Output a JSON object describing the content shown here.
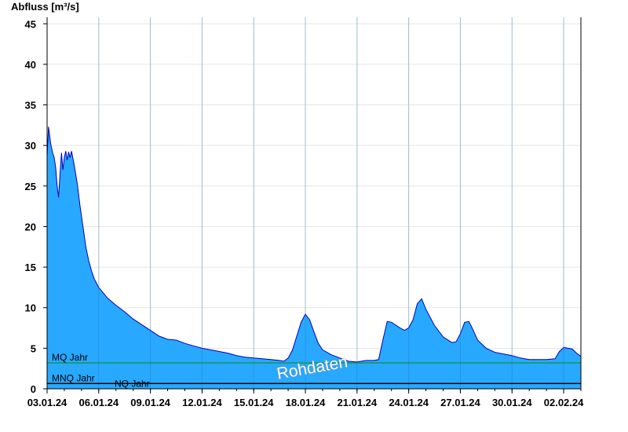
{
  "chart_data": {
    "type": "area",
    "ylabel": "Abfluss [m³/s]",
    "xlabel": "",
    "title": "",
    "ylim": [
      0,
      45.8
    ],
    "yticks": [
      0,
      5,
      10,
      15,
      20,
      25,
      30,
      35,
      40,
      45
    ],
    "x_unit": "day",
    "xlim": [
      "2024-01-03",
      "2024-02-03"
    ],
    "xticks": [
      "03.01.24",
      "06.01.24",
      "09.01.24",
      "12.01.24",
      "15.01.24",
      "18.01.24",
      "21.01.24",
      "24.01.24",
      "27.01.24",
      "30.01.24",
      "02.02.24"
    ],
    "grid": true,
    "series": [
      {
        "name": "",
        "color": "#29a8ff",
        "line_color": "#0000c0",
        "points": [
          [
            "2024-01-03 00:00",
            28.6
          ],
          [
            "2024-01-03 02:00",
            32.3
          ],
          [
            "2024-01-03 05:00",
            30.2
          ],
          [
            "2024-01-03 08:00",
            29.0
          ],
          [
            "2024-01-03 10:00",
            28.5
          ],
          [
            "2024-01-03 12:00",
            27.2
          ],
          [
            "2024-01-03 14:00",
            25.0
          ],
          [
            "2024-01-03 16:00",
            23.6
          ],
          [
            "2024-01-03 18:00",
            26.5
          ],
          [
            "2024-01-03 20:00",
            29.1
          ],
          [
            "2024-01-03 22:00",
            27.0
          ],
          [
            "2024-01-04 00:00",
            28.5
          ],
          [
            "2024-01-04 02:00",
            29.3
          ],
          [
            "2024-01-04 04:00",
            28.2
          ],
          [
            "2024-01-04 06:00",
            29.2
          ],
          [
            "2024-01-04 08:00",
            28.5
          ],
          [
            "2024-01-04 10:00",
            29.3
          ],
          [
            "2024-01-04 14:00",
            27.5
          ],
          [
            "2024-01-04 18:00",
            25.3
          ],
          [
            "2024-01-04 22:00",
            22.5
          ],
          [
            "2024-01-05 02:00",
            20.0
          ],
          [
            "2024-01-05 06:00",
            17.5
          ],
          [
            "2024-01-05 10:00",
            15.8
          ],
          [
            "2024-01-05 14:00",
            14.5
          ],
          [
            "2024-01-05 18:00",
            13.5
          ],
          [
            "2024-01-06 00:00",
            12.5
          ],
          [
            "2024-01-06 12:00",
            11.2
          ],
          [
            "2024-01-07 00:00",
            10.3
          ],
          [
            "2024-01-07 12:00",
            9.5
          ],
          [
            "2024-01-08 00:00",
            8.6
          ],
          [
            "2024-01-08 12:00",
            7.9
          ],
          [
            "2024-01-09 00:00",
            7.2
          ],
          [
            "2024-01-09 12:00",
            6.5
          ],
          [
            "2024-01-10 00:00",
            6.1
          ],
          [
            "2024-01-10 12:00",
            6.0
          ],
          [
            "2024-01-11 00:00",
            5.6
          ],
          [
            "2024-01-11 12:00",
            5.3
          ],
          [
            "2024-01-12 00:00",
            5.0
          ],
          [
            "2024-01-12 12:00",
            4.8
          ],
          [
            "2024-01-13 00:00",
            4.6
          ],
          [
            "2024-01-13 12:00",
            4.4
          ],
          [
            "2024-01-14 00:00",
            4.1
          ],
          [
            "2024-01-14 12:00",
            3.9
          ],
          [
            "2024-01-15 00:00",
            3.8
          ],
          [
            "2024-01-15 12:00",
            3.7
          ],
          [
            "2024-01-16 00:00",
            3.6
          ],
          [
            "2024-01-16 12:00",
            3.5
          ],
          [
            "2024-01-16 18:00",
            3.4
          ],
          [
            "2024-01-17 00:00",
            3.8
          ],
          [
            "2024-01-17 06:00",
            4.8
          ],
          [
            "2024-01-17 12:00",
            6.5
          ],
          [
            "2024-01-17 18:00",
            8.2
          ],
          [
            "2024-01-18 00:00",
            9.2
          ],
          [
            "2024-01-18 06:00",
            8.5
          ],
          [
            "2024-01-18 12:00",
            7.0
          ],
          [
            "2024-01-18 18:00",
            5.6
          ],
          [
            "2024-01-19 00:00",
            4.8
          ],
          [
            "2024-01-19 12:00",
            4.2
          ],
          [
            "2024-01-20 00:00",
            3.8
          ],
          [
            "2024-01-20 12:00",
            3.4
          ],
          [
            "2024-01-21 00:00",
            3.3
          ],
          [
            "2024-01-21 12:00",
            3.5
          ],
          [
            "2024-01-22 00:00",
            3.5
          ],
          [
            "2024-01-22 06:00",
            3.6
          ],
          [
            "2024-01-22 12:00",
            6.0
          ],
          [
            "2024-01-22 18:00",
            8.3
          ],
          [
            "2024-01-23 00:00",
            8.2
          ],
          [
            "2024-01-23 12:00",
            7.5
          ],
          [
            "2024-01-23 18:00",
            7.2
          ],
          [
            "2024-01-24 00:00",
            7.5
          ],
          [
            "2024-01-24 06:00",
            8.5
          ],
          [
            "2024-01-24 12:00",
            10.5
          ],
          [
            "2024-01-24 18:00",
            11.1
          ],
          [
            "2024-01-25 00:00",
            9.8
          ],
          [
            "2024-01-25 12:00",
            7.8
          ],
          [
            "2024-01-26 00:00",
            6.4
          ],
          [
            "2024-01-26 12:00",
            5.7
          ],
          [
            "2024-01-26 18:00",
            5.8
          ],
          [
            "2024-01-27 00:00",
            6.8
          ],
          [
            "2024-01-27 06:00",
            8.2
          ],
          [
            "2024-01-27 12:00",
            8.3
          ],
          [
            "2024-01-27 18:00",
            7.2
          ],
          [
            "2024-01-28 00:00",
            6.0
          ],
          [
            "2024-01-28 12:00",
            5.0
          ],
          [
            "2024-01-29 00:00",
            4.5
          ],
          [
            "2024-01-29 12:00",
            4.3
          ],
          [
            "2024-01-30 00:00",
            4.1
          ],
          [
            "2024-01-30 12:00",
            3.8
          ],
          [
            "2024-01-31 00:00",
            3.6
          ],
          [
            "2024-02-01 00:00",
            3.6
          ],
          [
            "2024-02-01 12:00",
            3.7
          ],
          [
            "2024-02-01 18:00",
            4.6
          ],
          [
            "2024-02-02 00:00",
            5.1
          ],
          [
            "2024-02-02 12:00",
            4.9
          ],
          [
            "2024-02-02 18:00",
            4.4
          ],
          [
            "2024-02-03 00:00",
            4.0
          ]
        ]
      }
    ],
    "reference_lines": [
      {
        "label": "MQ Jahr",
        "value": 3.2,
        "color": "#009000"
      },
      {
        "label": "MNQ Jahr",
        "value": 0.65,
        "color": "#000000"
      },
      {
        "label": "NQ Jahr",
        "value": 0.65,
        "color": "#000000"
      }
    ],
    "watermark": "Rohdaten"
  }
}
